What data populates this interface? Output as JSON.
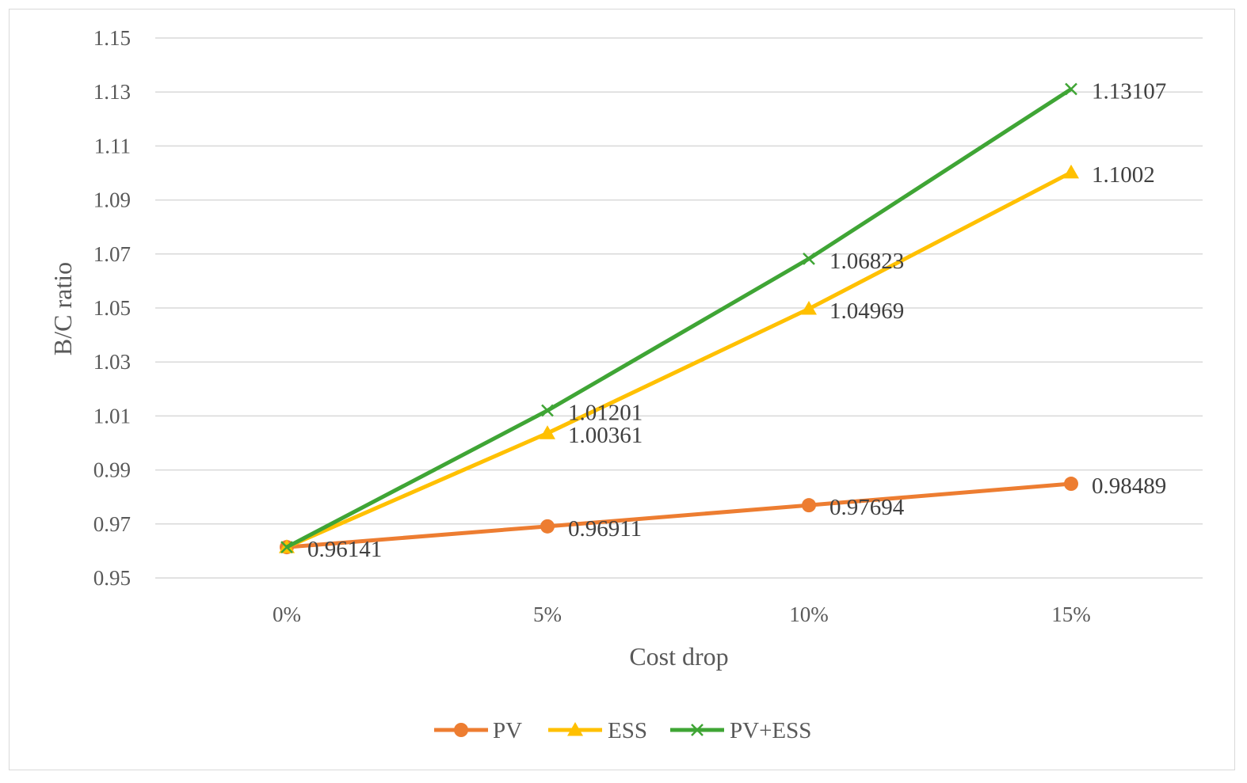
{
  "chart_data": {
    "type": "line",
    "title": "",
    "xlabel": "Cost drop",
    "ylabel": "B/C ratio",
    "categories": [
      "0%",
      "5%",
      "10%",
      "15%"
    ],
    "ylim": [
      0.95,
      1.15
    ],
    "yticks": [
      0.95,
      0.97,
      0.99,
      1.01,
      1.03,
      1.05,
      1.07,
      1.09,
      1.11,
      1.13,
      1.15
    ],
    "ytick_labels": [
      "0.95",
      "0.97",
      "0.99",
      "1.01",
      "1.03",
      "1.05",
      "1.07",
      "1.09",
      "1.11",
      "1.13",
      "1.15"
    ],
    "grid": true,
    "legend_position": "bottom",
    "series": [
      {
        "name": "PV",
        "color": "#ed7d31",
        "marker": "circle",
        "values": [
          0.96141,
          0.96911,
          0.97694,
          0.98489
        ],
        "labels": [
          "0.96141",
          "0.96911",
          "0.97694",
          "0.98489"
        ],
        "show_labels": [
          true,
          true,
          true,
          true
        ]
      },
      {
        "name": "ESS",
        "color": "#ffc000",
        "marker": "triangle",
        "values": [
          0.96141,
          1.00361,
          1.04969,
          1.1002
        ],
        "labels": [
          "0.96141",
          "1.00361",
          "1.04969",
          "1.1002"
        ],
        "show_labels": [
          false,
          true,
          true,
          true
        ]
      },
      {
        "name": "PV+ESS",
        "color": "#3fa535",
        "marker": "x",
        "values": [
          0.96141,
          1.01201,
          1.06823,
          1.13107
        ],
        "labels": [
          "0.96141",
          "1.01201",
          "1.06823",
          "1.13107"
        ],
        "show_labels": [
          false,
          true,
          true,
          true
        ]
      }
    ]
  }
}
